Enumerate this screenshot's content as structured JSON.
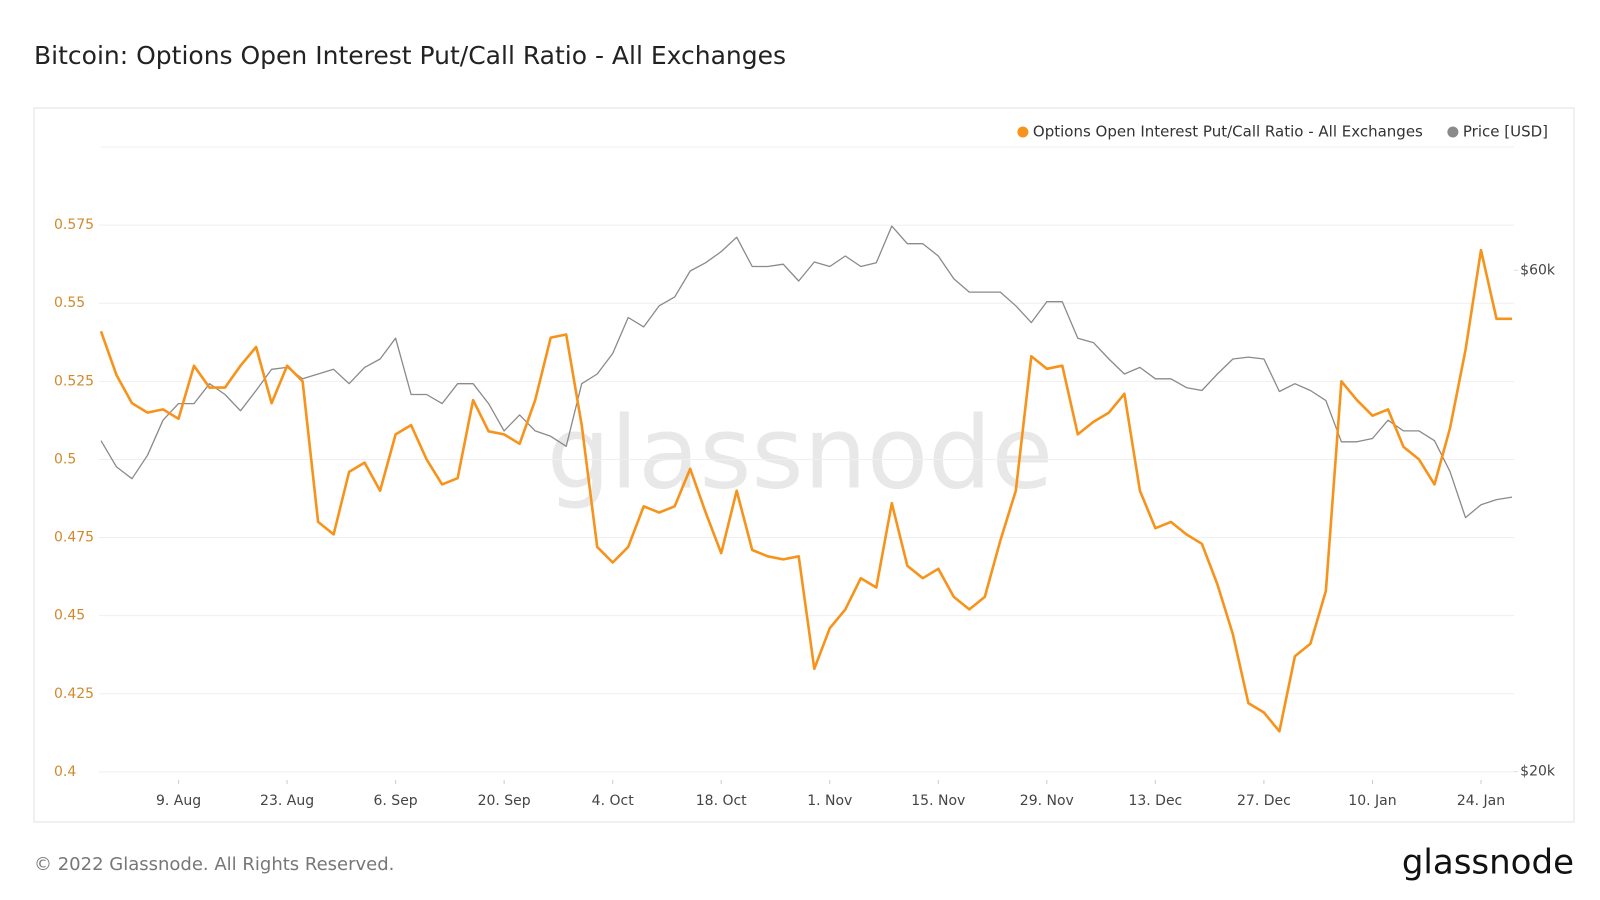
{
  "chart_data": {
    "type": "line",
    "title": "Bitcoin: Options Open Interest Put/Call Ratio - All Exchanges",
    "watermark": "glassnode",
    "footer": "© 2022 Glassnode. All Rights Reserved.",
    "logo": "glassnode",
    "legend": "top-right",
    "grid": true,
    "x": [
      "30. Jul",
      "1. Aug",
      "3. Aug",
      "5. Aug",
      "7. Aug",
      "9. Aug",
      "11. Aug",
      "13. Aug",
      "15. Aug",
      "17. Aug",
      "19. Aug",
      "21. Aug",
      "23. Aug",
      "25. Aug",
      "27. Aug",
      "29. Aug",
      "31. Aug",
      "2. Sep",
      "4. Sep",
      "6. Sep",
      "8. Sep",
      "10. Sep",
      "12. Sep",
      "14. Sep",
      "16. Sep",
      "18. Sep",
      "20. Sep",
      "22. Sep",
      "24. Sep",
      "26. Sep",
      "28. Sep",
      "30. Sep",
      "2. Oct",
      "4. Oct",
      "6. Oct",
      "8. Oct",
      "10. Oct",
      "12. Oct",
      "14. Oct",
      "16. Oct",
      "18. Oct",
      "20. Oct",
      "22. Oct",
      "24. Oct",
      "26. Oct",
      "28. Oct",
      "30. Oct",
      "1. Nov",
      "3. Nov",
      "5. Nov",
      "7. Nov",
      "9. Nov",
      "11. Nov",
      "13. Nov",
      "15. Nov",
      "17. Nov",
      "19. Nov",
      "21. Nov",
      "23. Nov",
      "25. Nov",
      "27. Nov",
      "29. Nov",
      "1. Dec",
      "3. Dec",
      "5. Dec",
      "7. Dec",
      "9. Dec",
      "11. Dec",
      "13. Dec",
      "15. Dec",
      "17. Dec",
      "19. Dec",
      "21. Dec",
      "23. Dec",
      "25. Dec",
      "27. Dec",
      "29. Dec",
      "31. Dec",
      "2. Jan",
      "4. Jan",
      "6. Jan",
      "8. Jan",
      "10. Jan",
      "12. Jan",
      "14. Jan",
      "16. Jan",
      "18. Jan",
      "20. Jan",
      "22. Jan",
      "24. Jan",
      "26. Jan",
      "28. Jan"
    ],
    "xticks": [
      "9. Aug",
      "23. Aug",
      "6. Sep",
      "20. Sep",
      "4. Oct",
      "18. Oct",
      "1. Nov",
      "15. Nov",
      "29. Nov",
      "13. Dec",
      "27. Dec",
      "10. Jan",
      "24. Jan"
    ],
    "ylim": [
      0.3974,
      0.6
    ],
    "yticks": [
      0.4,
      0.425,
      0.45,
      0.475,
      0.5,
      0.525,
      0.55,
      0.575
    ],
    "y2lim": [
      19640,
      78600
    ],
    "y2log": true,
    "y2ticks": [
      {
        "value": 20000,
        "label": "$20k"
      },
      {
        "value": 60000,
        "label": "$60k"
      }
    ],
    "series": [
      {
        "name": "Options Open Interest Put/Call Ratio - All Exchanges",
        "color": "#f7931a",
        "axis": "y",
        "values": [
          0.541,
          0.527,
          0.518,
          0.515,
          0.516,
          0.513,
          0.53,
          0.523,
          0.523,
          0.53,
          0.536,
          0.518,
          0.53,
          0.525,
          0.48,
          0.476,
          0.496,
          0.499,
          0.49,
          0.508,
          0.511,
          0.5,
          0.492,
          0.494,
          0.519,
          0.509,
          0.508,
          0.505,
          0.519,
          0.539,
          0.54,
          0.511,
          0.472,
          0.467,
          0.472,
          0.485,
          0.483,
          0.485,
          0.497,
          0.483,
          0.47,
          0.49,
          0.471,
          0.469,
          0.468,
          0.469,
          0.433,
          0.446,
          0.452,
          0.462,
          0.459,
          0.486,
          0.466,
          0.462,
          0.465,
          0.456,
          0.452,
          0.456,
          0.474,
          0.49,
          0.533,
          0.529,
          0.53,
          0.508,
          0.512,
          0.515,
          0.521,
          0.49,
          0.478,
          0.48,
          0.476,
          0.473,
          0.46,
          0.444,
          0.422,
          0.419,
          0.413,
          0.437,
          0.441,
          0.458,
          0.525,
          0.519,
          0.514,
          0.516,
          0.504,
          0.5,
          0.492,
          0.51,
          0.535,
          0.567,
          0.545,
          0.545
        ]
      },
      {
        "name": "Price [USD]",
        "color": "#8a8a8a",
        "axis": "y2",
        "values": [
          41300,
          39000,
          38000,
          40000,
          43200,
          44800,
          44800,
          46800,
          45700,
          44100,
          46100,
          48300,
          48500,
          47300,
          47800,
          48300,
          46800,
          48500,
          49400,
          51700,
          45700,
          45700,
          44800,
          46800,
          46800,
          44800,
          42200,
          43700,
          42200,
          41700,
          40800,
          46800,
          47800,
          50000,
          54100,
          53000,
          55500,
          56600,
          59900,
          61000,
          62500,
          64500,
          60500,
          60500,
          60800,
          58600,
          61100,
          60500,
          61900,
          60500,
          61000,
          66100,
          63600,
          63600,
          61900,
          58900,
          57200,
          57200,
          57200,
          55500,
          53500,
          56000,
          56000,
          51700,
          51200,
          49400,
          47800,
          48500,
          47300,
          47300,
          46400,
          46100,
          47800,
          49400,
          49600,
          49400,
          46000,
          46800,
          46100,
          45100,
          41200,
          41200,
          41500,
          43200,
          42200,
          42200,
          41300,
          38600,
          34900,
          35900,
          36300,
          36500
        ]
      }
    ]
  }
}
